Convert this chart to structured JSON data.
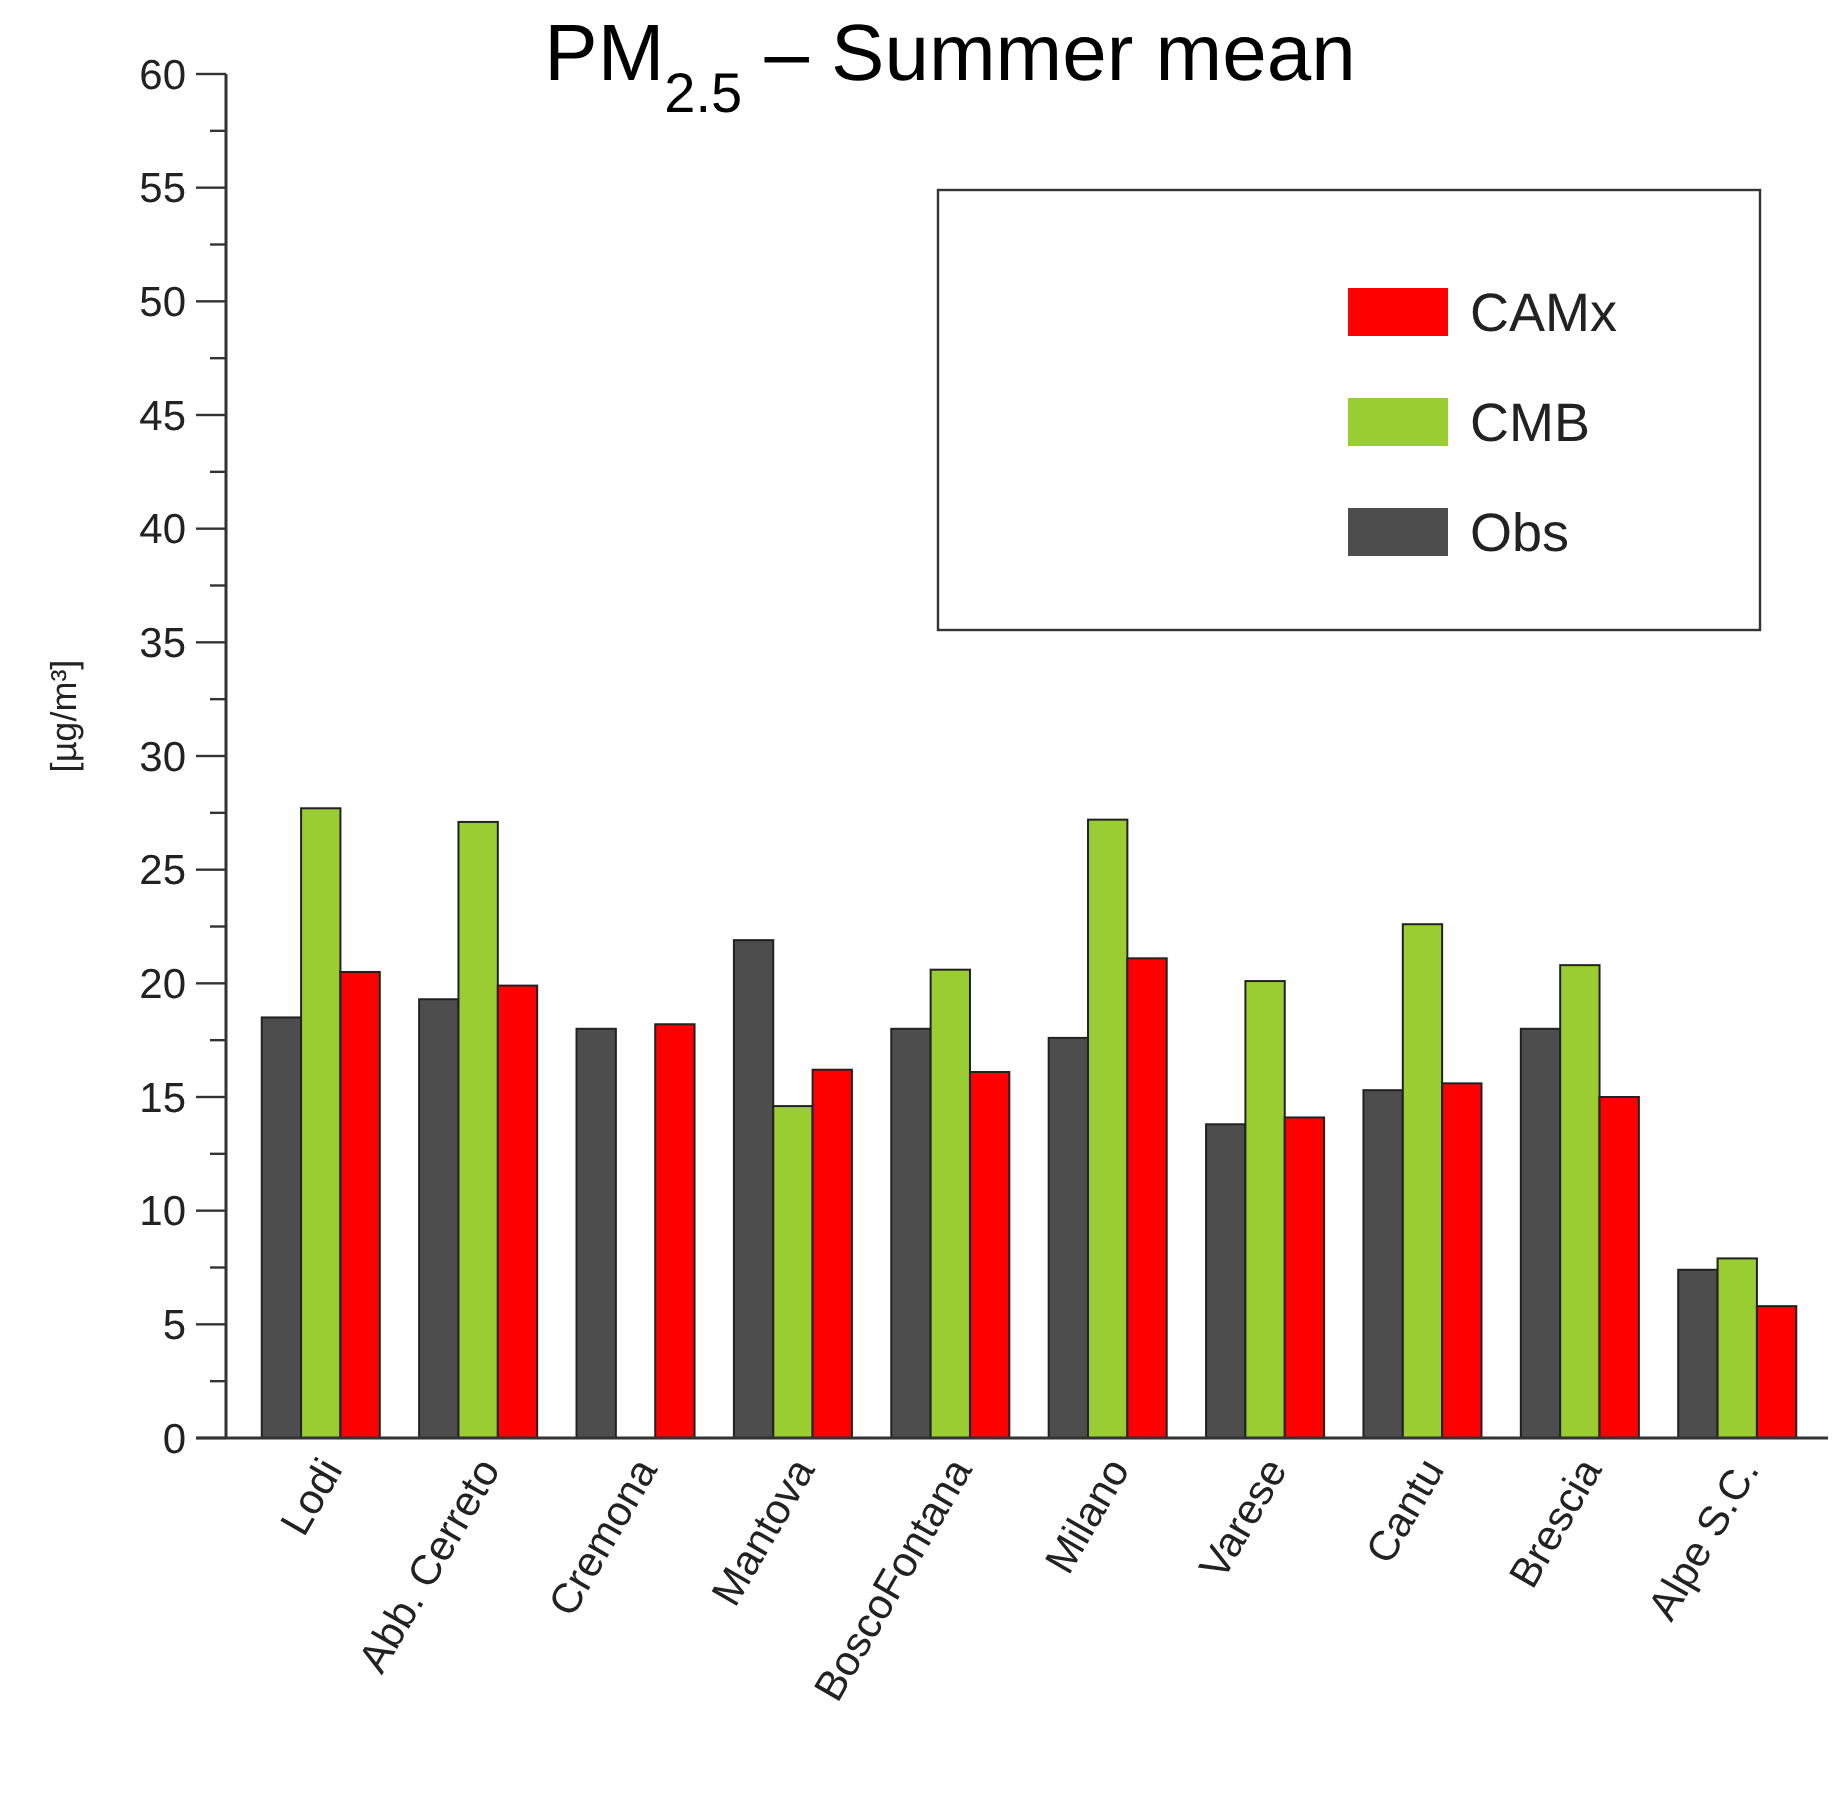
{
  "chart_data": {
    "type": "bar",
    "title": "PM$_{2.5}$ – Summer mean",
    "ylabel": "[µg/m³]",
    "categories": [
      "Lodi",
      "Abb. Cerreto",
      "Cremona",
      "Mantova",
      "BoscoFontana",
      "Milano",
      "Varese",
      "Cantu",
      "Brescia",
      "Alpe S.C."
    ],
    "series": [
      {
        "name": "Obs",
        "color": "#4d4d4d",
        "values": [
          18.5,
          19.3,
          18.0,
          21.9,
          18.0,
          17.6,
          13.8,
          15.3,
          18.0,
          7.4
        ]
      },
      {
        "name": "CMB",
        "color": "#9acd32",
        "values": [
          27.7,
          27.1,
          null,
          14.6,
          20.6,
          27.2,
          20.1,
          22.6,
          20.8,
          7.9
        ]
      },
      {
        "name": "CAMx",
        "color": "#ff0000",
        "values": [
          20.5,
          19.9,
          18.2,
          16.2,
          16.1,
          21.1,
          14.1,
          15.6,
          15.0,
          5.8
        ]
      }
    ],
    "ylim": [
      0,
      60
    ],
    "yticks": [
      0,
      {
        "value": 2.5,
        "label": null
      },
      5,
      {
        "value": 7.5,
        "label": null
      },
      10,
      {
        "value": 12.5,
        "label": null
      },
      15,
      {
        "value": 17.5,
        "label": null
      },
      20,
      {
        "value": 22.5,
        "label": null
      },
      25,
      {
        "value": 27.5,
        "label": null
      },
      30,
      {
        "value": 32.5,
        "label": null
      },
      35,
      {
        "value": 37.5,
        "label": null
      },
      40,
      {
        "value": 42.5,
        "label": null
      },
      45,
      {
        "value": 47.5,
        "label": null
      },
      50,
      {
        "value": 52.5,
        "label": null
      },
      55,
      {
        "value": 57.5,
        "label": null
      },
      60
    ],
    "legend": "top right"
  }
}
